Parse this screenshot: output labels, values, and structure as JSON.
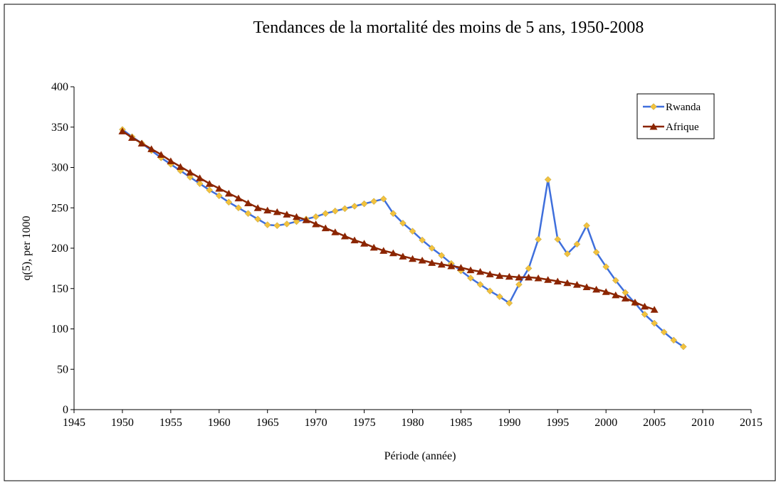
{
  "chart_data": {
    "type": "line",
    "title": "Tendances de la mortalité des moins de 5 ans, 1950-2008",
    "x_label": "Période (année)",
    "y_label": "q(5), per 1000",
    "x": [
      1950,
      1951,
      1952,
      1953,
      1954,
      1955,
      1956,
      1957,
      1958,
      1959,
      1960,
      1961,
      1962,
      1963,
      1964,
      1965,
      1966,
      1967,
      1968,
      1969,
      1970,
      1971,
      1972,
      1973,
      1974,
      1975,
      1976,
      1977,
      1978,
      1979,
      1980,
      1981,
      1982,
      1983,
      1984,
      1985,
      1986,
      1987,
      1988,
      1989,
      1990,
      1991,
      1992,
      1993,
      1994,
      1995,
      1996,
      1997,
      1998,
      1999,
      2000,
      2001,
      2002,
      2003,
      2004,
      2005,
      2006,
      2007,
      2008
    ],
    "series": [
      {
        "name": "Rwanda",
        "color": "#3f6fdc",
        "marker": "diamond",
        "marker_color": "#f2c23e",
        "values": [
          347,
          338,
          330,
          321,
          312,
          304,
          296,
          288,
          280,
          272,
          265,
          257,
          250,
          243,
          236,
          229,
          228,
          230,
          233,
          236,
          239,
          243,
          246,
          249,
          252,
          255,
          258,
          261,
          243,
          231,
          221,
          210,
          200,
          191,
          181,
          172,
          163,
          155,
          147,
          140,
          132,
          155,
          175,
          211,
          285,
          211,
          193,
          205,
          228,
          195,
          177,
          160,
          145,
          132,
          118,
          107,
          96,
          86,
          78
        ]
      },
      {
        "name": "Afrique",
        "color": "#8b2500",
        "marker": "triangle",
        "marker_color": "#8b2500",
        "values": [
          345,
          337,
          330,
          323,
          316,
          308,
          301,
          294,
          287,
          280,
          274,
          268,
          262,
          256,
          250,
          247,
          245,
          242,
          239,
          235,
          230,
          225,
          220,
          215,
          210,
          206,
          201,
          197,
          194,
          190,
          187,
          185,
          182,
          180,
          178,
          176,
          173,
          171,
          168,
          166,
          165,
          164,
          164,
          163,
          161,
          159,
          157,
          155,
          152,
          149,
          146,
          142,
          138,
          133,
          128,
          124,
          null,
          null,
          null
        ]
      }
    ],
    "xlim": [
      1945,
      2015
    ],
    "xticks": [
      1945,
      1950,
      1955,
      1960,
      1965,
      1970,
      1975,
      1980,
      1985,
      1990,
      1995,
      2000,
      2005,
      2010,
      2015
    ],
    "ylim": [
      0,
      400
    ],
    "yticks": [
      0,
      50,
      100,
      150,
      200,
      250,
      300,
      350,
      400
    ],
    "legend": "upper right"
  }
}
